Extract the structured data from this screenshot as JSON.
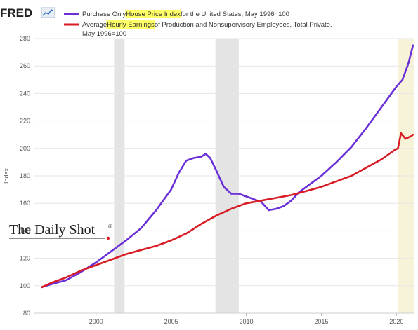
{
  "brand": {
    "logo_text": "FRED",
    "logo_icon": "fred-chart-icon"
  },
  "watermark": {
    "text": "The Daily Shot",
    "mark": "®"
  },
  "chart_data": {
    "type": "line",
    "ylabel": "Index",
    "xlabel": "",
    "xlim": [
      1995.85,
      2021.2
    ],
    "ylim": [
      80,
      280
    ],
    "yticks": [
      80,
      100,
      120,
      140,
      160,
      180,
      200,
      220,
      240,
      260,
      280
    ],
    "xticks": [
      2000,
      2005,
      2010,
      2015,
      2020
    ],
    "grid": "horizontal",
    "legend_position": "top-left",
    "recessions": [
      [
        2001.2,
        2001.9
      ],
      [
        2007.95,
        2009.5
      ],
      [
        2020.1,
        2021.2
      ]
    ],
    "series": [
      {
        "name_parts": [
          "Purchase Only ",
          "House Price Index",
          " for the United States, May 1996=100"
        ],
        "color": "#6a2fd8",
        "x": [
          1996.4,
          1997,
          1998,
          1999,
          2000,
          2001,
          2002,
          2003,
          2004,
          2005,
          2005.5,
          2006,
          2006.5,
          2007,
          2007.3,
          2007.6,
          2008,
          2008.5,
          2008.7,
          2009,
          2009.5,
          2010,
          2010.5,
          2011,
          2011.5,
          2012,
          2012.5,
          2013,
          2013.5,
          2014,
          2015,
          2016,
          2017,
          2018,
          2019,
          2020,
          2020.4,
          2020.8,
          2021.1
        ],
        "y": [
          99,
          101,
          104,
          110,
          117,
          125,
          133,
          142,
          155,
          170,
          182,
          191,
          193,
          194,
          196,
          193,
          184,
          172,
          170,
          167,
          167,
          165,
          163,
          161,
          155,
          156,
          158,
          162,
          168,
          172,
          180,
          190,
          201,
          215,
          230,
          245,
          250,
          262,
          275
        ]
      },
      {
        "name_parts": [
          "Average ",
          "Hourly Earnings",
          " of Production and Nonsupervisory Employees, Total Private,",
          "May 1996=100"
        ],
        "color": "#d81b24",
        "x": [
          1996.4,
          1997,
          1998,
          1999,
          2000,
          2001,
          2002,
          2003,
          2004,
          2005,
          2006,
          2007,
          2008,
          2009,
          2010,
          2011,
          2012,
          2013,
          2014,
          2015,
          2016,
          2017,
          2018,
          2019,
          2019.9,
          2020.1,
          2020.3,
          2020.6,
          2021,
          2021.1
        ],
        "y": [
          99,
          102,
          106,
          111,
          115,
          119,
          123,
          126,
          129,
          133,
          138,
          145,
          151,
          156,
          160,
          162,
          164,
          166,
          169,
          172,
          176,
          180,
          186,
          192,
          199,
          200,
          211,
          207,
          209,
          210
        ]
      }
    ]
  }
}
